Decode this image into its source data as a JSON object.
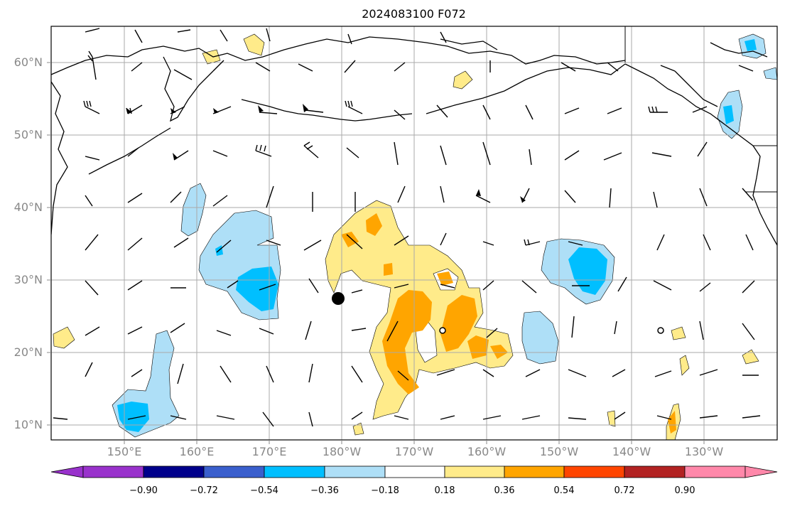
{
  "title": "2024083100 F072",
  "map": {
    "lat_labels": [
      "60°N",
      "50°N",
      "40°N",
      "30°N",
      "20°N",
      "10°N"
    ],
    "lon_labels": [
      "150°E",
      "160°E",
      "170°E",
      "180°W",
      "170°W",
      "160°W",
      "150°W",
      "140°W",
      "130°W"
    ]
  },
  "colorbar": {
    "colors": [
      "#9932CC",
      "#00008B",
      "#3A5FCD",
      "#00BFFF",
      "#AEDFF7",
      "#FFFFFF",
      "#FFEB8A",
      "#FFA500",
      "#FF4500",
      "#B22222",
      "#FF88AA"
    ],
    "tick_labels": [
      "−0.90",
      "−0.72",
      "−0.54",
      "−0.36",
      "−0.18",
      "0.18",
      "0.36",
      "0.54",
      "0.72",
      "0.90"
    ]
  }
}
